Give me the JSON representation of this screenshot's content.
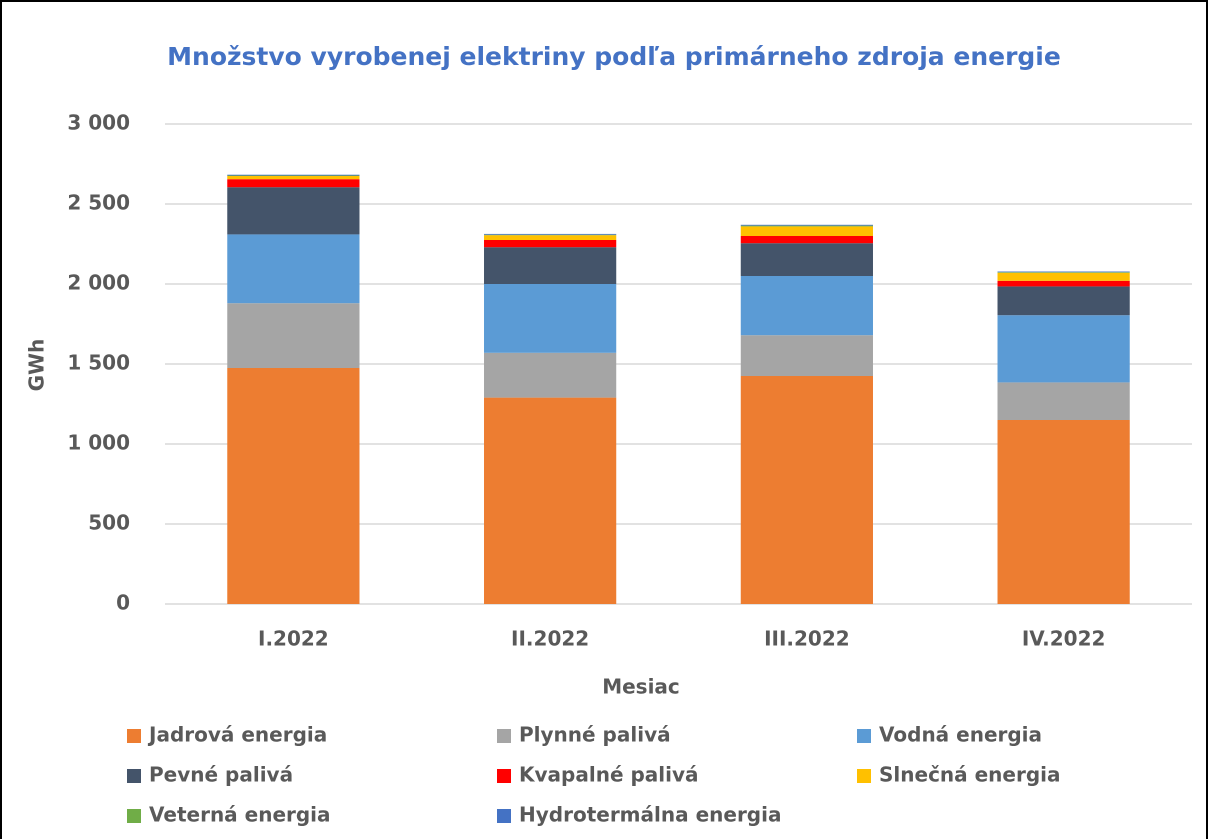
{
  "chart_data": {
    "type": "stacked_bar",
    "title": "Množstvo vyrobenej elektriny podľa primárneho zdroja energie",
    "x_label": "Mesiac",
    "y_label": "GWh",
    "categories": [
      "I.2022",
      "II.2022",
      "III.2022",
      "IV.2022"
    ],
    "series": [
      {
        "name": "Jadrová energia",
        "color": "#ed7d31",
        "values": [
          1475,
          1290,
          1425,
          1150
        ]
      },
      {
        "name": "Plynné palivá",
        "color": "#a5a5a5",
        "values": [
          405,
          280,
          255,
          235
        ]
      },
      {
        "name": "Vodná energia",
        "color": "#5b9bd5",
        "values": [
          430,
          430,
          370,
          420
        ]
      },
      {
        "name": "Pevné palivá",
        "color": "#44546a",
        "values": [
          295,
          230,
          205,
          180
        ]
      },
      {
        "name": "Kvapalné palivá",
        "color": "#ff0000",
        "values": [
          50,
          45,
          45,
          35
        ]
      },
      {
        "name": "Slnečná energia",
        "color": "#ffc000",
        "values": [
          20,
          30,
          60,
          50
        ]
      },
      {
        "name": "Veterná energia",
        "color": "#70ad47",
        "values": [
          3,
          3,
          5,
          4
        ]
      },
      {
        "name": "Hydrotermálna energia",
        "color": "#4472c4",
        "values": [
          5,
          5,
          5,
          4
        ]
      }
    ],
    "ylim": [
      0,
      3000
    ],
    "yticks": [
      0,
      500,
      {
        "value": 1000,
        "label": "1 000"
      },
      {
        "value": 1500,
        "label": "1 500"
      },
      {
        "value": 2000,
        "label": "2 000"
      },
      {
        "value": 2500,
        "label": "2 500"
      },
      {
        "value": 3000,
        "label": "3 000"
      }
    ],
    "grid": true,
    "legend": "bottom"
  }
}
